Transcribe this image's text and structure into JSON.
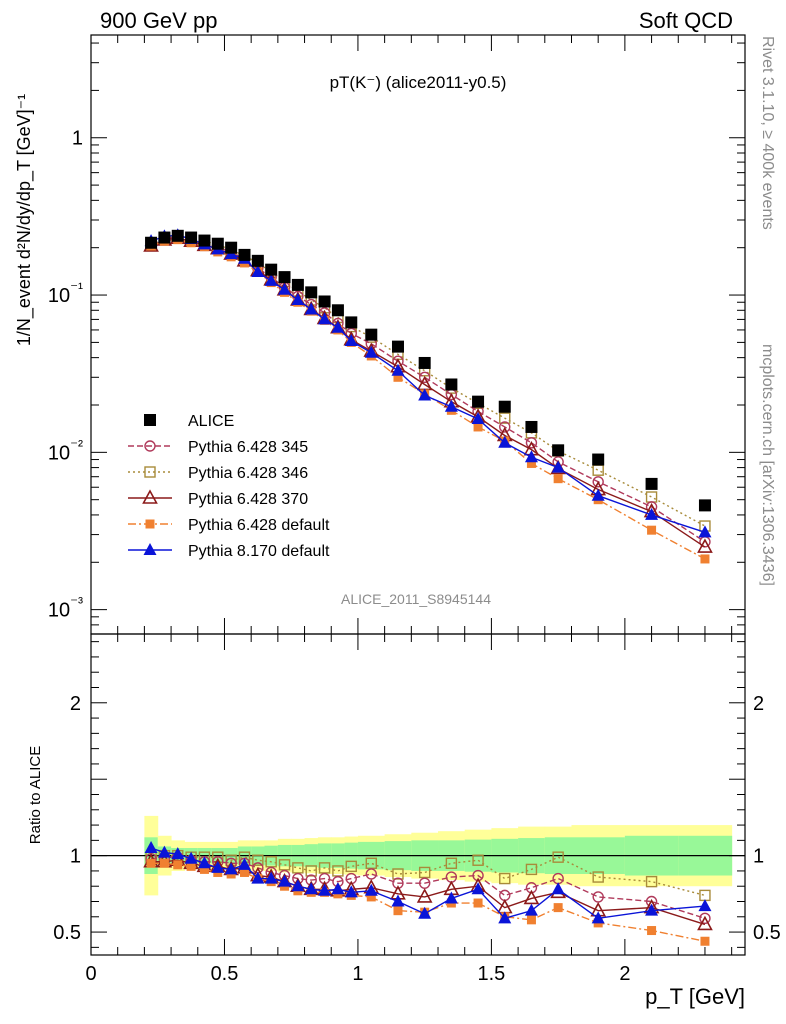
{
  "header": {
    "left": "900 GeV pp",
    "right": "Soft QCD"
  },
  "side_labels": {
    "rivet": "Rivet 3.1.10, ≥ 400k events",
    "mcplots": "mcplots.cern.ch [arXiv:1306.3436]"
  },
  "colors": {
    "alice": "#000000",
    "p345": "#b03a5b",
    "p346": "#a88b3a",
    "p370": "#8b1a1a",
    "p6def": "#f08030",
    "p8def": "#0a14d8",
    "band_inner": "#98f898",
    "band_outer": "#ffff99"
  },
  "chart_data": [
    {
      "type": "scatter",
      "title": "pT(K⁻) (alice2011-y0.5)",
      "watermark": "ALICE_2011_S8945144",
      "ylabel": "1/N_event d²N/dy/dp_T [GeV]⁻¹",
      "yscale": "log",
      "ylim": [
        0.0007,
        4.5
      ],
      "xlim": [
        0,
        2.45
      ],
      "ytick_labels": [
        "1",
        "10⁻¹",
        "10⁻²",
        "10⁻³"
      ],
      "legend_position": "left",
      "x": [
        0.225,
        0.275,
        0.325,
        0.375,
        0.425,
        0.475,
        0.525,
        0.575,
        0.625,
        0.675,
        0.725,
        0.775,
        0.825,
        0.875,
        0.925,
        0.975,
        1.05,
        1.15,
        1.25,
        1.35,
        1.45,
        1.55,
        1.65,
        1.75,
        1.9,
        2.1,
        2.3
      ],
      "series": [
        {
          "name": "ALICE",
          "key": "alice",
          "marker": "square-filled",
          "line": "none",
          "values": [
            0.215,
            0.232,
            0.238,
            0.232,
            0.222,
            0.212,
            0.2,
            0.18,
            0.165,
            0.145,
            0.13,
            0.116,
            0.104,
            0.091,
            0.08,
            0.067,
            0.056,
            0.047,
            0.037,
            0.027,
            0.021,
            0.0195,
            0.0145,
            0.0103,
            0.009,
            0.0063,
            0.0046
          ]
        },
        {
          "name": "Pythia 6.428 345",
          "key": "p345",
          "marker": "circle-open",
          "line": "dashed",
          "values": [
            0.21,
            0.228,
            0.235,
            0.225,
            0.212,
            0.202,
            0.188,
            0.17,
            0.148,
            0.13,
            0.112,
            0.098,
            0.087,
            0.077,
            0.066,
            0.057,
            0.049,
            0.038,
            0.03,
            0.0233,
            0.0182,
            0.0145,
            0.0115,
            0.0087,
            0.0065,
            0.0045,
            0.0027
          ]
        },
        {
          "name": "Pythia 6.428 346",
          "key": "p346",
          "marker": "square-open",
          "line": "dotted",
          "values": [
            0.21,
            0.23,
            0.238,
            0.23,
            0.22,
            0.21,
            0.193,
            0.178,
            0.16,
            0.14,
            0.122,
            0.106,
            0.093,
            0.083,
            0.072,
            0.063,
            0.054,
            0.042,
            0.033,
            0.0256,
            0.0205,
            0.0165,
            0.0133,
            0.0102,
            0.0077,
            0.0052,
            0.0034
          ]
        },
        {
          "name": "Pythia 6.428 370",
          "key": "p370",
          "marker": "triangle-open",
          "line": "solid",
          "values": [
            0.205,
            0.224,
            0.23,
            0.22,
            0.207,
            0.197,
            0.182,
            0.165,
            0.143,
            0.125,
            0.108,
            0.093,
            0.081,
            0.071,
            0.062,
            0.052,
            0.044,
            0.035,
            0.027,
            0.021,
            0.0168,
            0.0128,
            0.0104,
            0.0079,
            0.0058,
            0.0042,
            0.0025
          ]
        },
        {
          "name": "Pythia 6.428 default",
          "key": "p6def",
          "marker": "square-small-filled",
          "line": "dashdot",
          "values": [
            0.205,
            0.22,
            0.225,
            0.215,
            0.203,
            0.188,
            0.175,
            0.16,
            0.14,
            0.12,
            0.104,
            0.09,
            0.079,
            0.069,
            0.06,
            0.05,
            0.041,
            0.03,
            0.0235,
            0.0185,
            0.0145,
            0.0118,
            0.0085,
            0.0068,
            0.005,
            0.0032,
            0.0021
          ]
        },
        {
          "name": "Pythia 8.170 default",
          "key": "p8def",
          "marker": "triangle-filled",
          "line": "solid",
          "values": [
            0.22,
            0.236,
            0.24,
            0.227,
            0.21,
            0.195,
            0.182,
            0.17,
            0.14,
            0.123,
            0.108,
            0.093,
            0.081,
            0.07,
            0.062,
            0.051,
            0.043,
            0.033,
            0.023,
            0.0195,
            0.0163,
            0.0115,
            0.0093,
            0.008,
            0.0053,
            0.004,
            0.0031
          ]
        }
      ]
    },
    {
      "type": "line",
      "ylabel": "Ratio to ALICE",
      "ylim": [
        0.35,
        2.45
      ],
      "xlim": [
        0,
        2.45
      ],
      "xlabel": "p_T [GeV]",
      "xtick_labels": [
        "0",
        "0.5",
        "1",
        "1.5",
        "2"
      ],
      "ytick_labels": [
        "0.5",
        "1",
        "2"
      ],
      "x": [
        0.225,
        0.275,
        0.325,
        0.375,
        0.425,
        0.475,
        0.525,
        0.575,
        0.625,
        0.675,
        0.725,
        0.775,
        0.825,
        0.875,
        0.925,
        0.975,
        1.05,
        1.15,
        1.25,
        1.35,
        1.45,
        1.55,
        1.65,
        1.75,
        1.9,
        2.1,
        2.3
      ],
      "bins": [
        0.2,
        0.25,
        0.3,
        0.35,
        0.4,
        0.45,
        0.5,
        0.55,
        0.6,
        0.65,
        0.7,
        0.75,
        0.8,
        0.85,
        0.9,
        0.95,
        1.0,
        1.1,
        1.2,
        1.3,
        1.4,
        1.5,
        1.6,
        1.7,
        1.8,
        2.0,
        2.2,
        2.4
      ],
      "band_inner": [
        0.12,
        0.06,
        0.05,
        0.05,
        0.05,
        0.05,
        0.05,
        0.06,
        0.06,
        0.065,
        0.07,
        0.07,
        0.075,
        0.08,
        0.08,
        0.085,
        0.09,
        0.095,
        0.1,
        0.1,
        0.105,
        0.11,
        0.115,
        0.12,
        0.12,
        0.13,
        0.13
      ],
      "band_outer": [
        0.26,
        0.13,
        0.1,
        0.09,
        0.09,
        0.09,
        0.09,
        0.1,
        0.1,
        0.1,
        0.11,
        0.11,
        0.115,
        0.12,
        0.12,
        0.125,
        0.13,
        0.14,
        0.15,
        0.16,
        0.17,
        0.18,
        0.19,
        0.19,
        0.2,
        0.2,
        0.2
      ],
      "series": [
        {
          "key": "p345",
          "values": [
            0.98,
            0.99,
            0.99,
            0.97,
            0.96,
            0.96,
            0.95,
            0.95,
            0.92,
            0.89,
            0.87,
            0.85,
            0.84,
            0.85,
            0.83,
            0.85,
            0.88,
            0.82,
            0.82,
            0.86,
            0.87,
            0.74,
            0.79,
            0.85,
            0.73,
            0.7,
            0.59
          ]
        },
        {
          "key": "p346",
          "values": [
            0.99,
            1.0,
            1.0,
            0.99,
            0.99,
            0.99,
            0.97,
            0.99,
            0.97,
            0.96,
            0.94,
            0.92,
            0.9,
            0.92,
            0.9,
            0.93,
            0.95,
            0.88,
            0.89,
            0.95,
            0.97,
            0.85,
            0.91,
            0.99,
            0.86,
            0.83,
            0.74
          ]
        },
        {
          "key": "p370",
          "values": [
            0.96,
            0.96,
            0.97,
            0.95,
            0.93,
            0.93,
            0.91,
            0.92,
            0.87,
            0.86,
            0.83,
            0.8,
            0.78,
            0.78,
            0.77,
            0.78,
            0.79,
            0.75,
            0.73,
            0.78,
            0.8,
            0.66,
            0.72,
            0.76,
            0.64,
            0.66,
            0.55
          ]
        },
        {
          "key": "p6def",
          "values": [
            0.95,
            0.95,
            0.94,
            0.93,
            0.91,
            0.89,
            0.88,
            0.89,
            0.85,
            0.83,
            0.8,
            0.77,
            0.76,
            0.76,
            0.75,
            0.74,
            0.73,
            0.64,
            0.63,
            0.69,
            0.69,
            0.6,
            0.58,
            0.66,
            0.56,
            0.51,
            0.44
          ]
        },
        {
          "key": "p8def",
          "values": [
            1.05,
            1.02,
            1.01,
            0.98,
            0.95,
            0.92,
            0.91,
            0.94,
            0.85,
            0.85,
            0.83,
            0.8,
            0.78,
            0.77,
            0.78,
            0.76,
            0.77,
            0.7,
            0.62,
            0.72,
            0.78,
            0.59,
            0.64,
            0.78,
            0.59,
            0.64,
            0.67
          ]
        }
      ]
    }
  ]
}
